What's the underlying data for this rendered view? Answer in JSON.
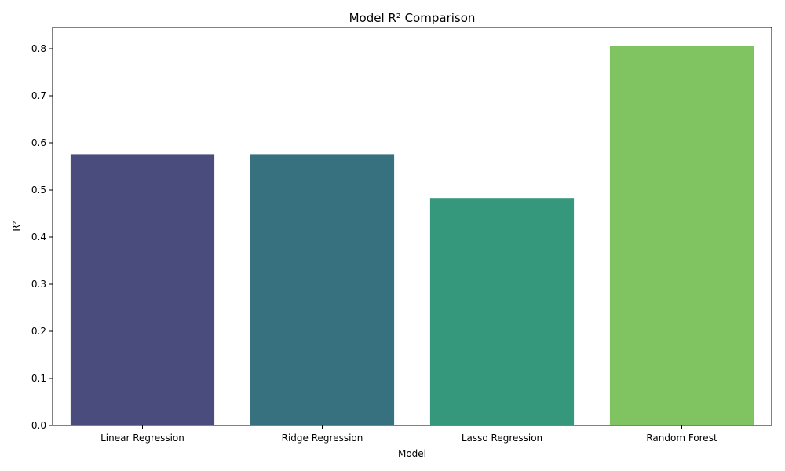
{
  "chart_data": {
    "type": "bar",
    "title": "Model R² Comparison",
    "xlabel": "Model",
    "ylabel": "R²",
    "categories": [
      "Linear Regression",
      "Ridge Regression",
      "Lasso Regression",
      "Random Forest"
    ],
    "values": [
      0.576,
      0.576,
      0.483,
      0.806
    ],
    "colors": [
      "#4a4c7e",
      "#37717f",
      "#35987c",
      "#7fc460"
    ],
    "ylim": [
      0,
      0.845
    ],
    "yticks": [
      0.0,
      0.1,
      0.2,
      0.3,
      0.4,
      0.5,
      0.6,
      0.7,
      0.8
    ],
    "ytick_labels": [
      "0.0",
      "0.1",
      "0.2",
      "0.3",
      "0.4",
      "0.5",
      "0.6",
      "0.7",
      "0.8"
    ],
    "grid": false,
    "legend": false
  }
}
